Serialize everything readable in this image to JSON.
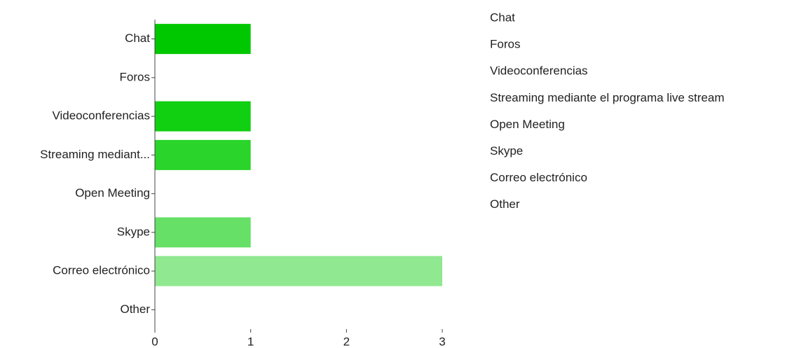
{
  "chart_data": {
    "type": "bar",
    "orientation": "horizontal",
    "categories": [
      "Chat",
      "Foros",
      "Videoconferencias",
      "Streaming mediant...",
      "Open Meeting",
      "Skype",
      "Correo electrónico",
      "Other"
    ],
    "values": [
      1,
      0,
      1,
      1,
      0,
      1,
      3,
      0
    ],
    "colors": [
      "#00c800",
      "#08cb08",
      "#11cf11",
      "#2ad42a",
      "#48da48",
      "#66e066",
      "#90e890",
      "#b0efb0"
    ],
    "xlim": [
      0,
      3
    ],
    "xticks": [
      0,
      1,
      2,
      3
    ],
    "legend": [
      "Chat",
      "Foros",
      "Videoconferencias",
      "Streaming mediante el programa live stream",
      "Open Meeting",
      "Skype",
      "Correo electrónico",
      "Other"
    ]
  }
}
